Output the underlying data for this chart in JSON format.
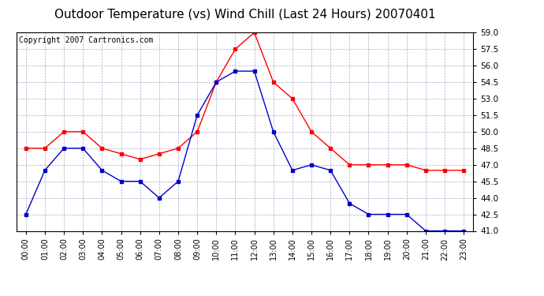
{
  "title": "Outdoor Temperature (vs) Wind Chill (Last 24 Hours) 20070401",
  "copyright": "Copyright 2007 Cartronics.com",
  "hours": [
    "00:00",
    "01:00",
    "02:00",
    "03:00",
    "04:00",
    "05:00",
    "06:00",
    "07:00",
    "08:00",
    "09:00",
    "10:00",
    "11:00",
    "12:00",
    "13:00",
    "14:00",
    "15:00",
    "16:00",
    "17:00",
    "18:00",
    "19:00",
    "20:00",
    "21:00",
    "22:00",
    "23:00"
  ],
  "temp": [
    48.5,
    48.5,
    50.0,
    50.0,
    48.5,
    48.0,
    47.5,
    48.0,
    48.5,
    50.0,
    54.5,
    57.5,
    59.0,
    54.5,
    53.0,
    50.0,
    48.5,
    47.0,
    47.0,
    47.0,
    47.0,
    46.5,
    46.5,
    46.5
  ],
  "windchill": [
    42.5,
    46.5,
    48.5,
    48.5,
    46.5,
    45.5,
    45.5,
    44.0,
    45.5,
    51.5,
    54.5,
    55.5,
    55.5,
    50.0,
    46.5,
    47.0,
    46.5,
    43.5,
    42.5,
    42.5,
    42.5,
    41.0,
    41.0,
    41.0
  ],
  "temp_color": "#ff0000",
  "windchill_color": "#0000cc",
  "bg_color": "#ffffff",
  "plot_bg_color": "#ffffff",
  "grid_color": "#aaaacc",
  "ylim_min": 41.0,
  "ylim_max": 59.0,
  "ytick_step": 1.5,
  "title_fontsize": 11,
  "copyright_fontsize": 7
}
